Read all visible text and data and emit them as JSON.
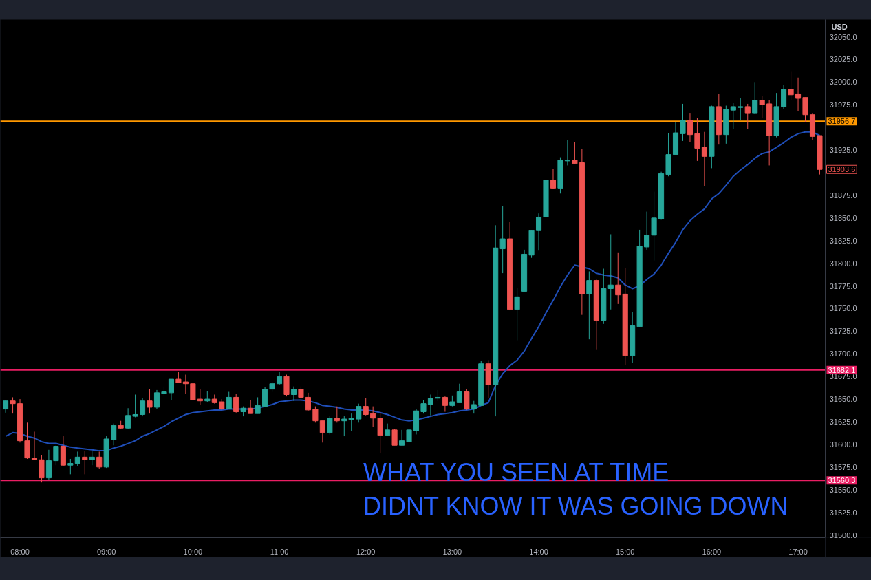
{
  "chart_data": {
    "type": "candlestick",
    "ylabel": "USD",
    "x": [
      7.8333,
      7.9167,
      8,
      8.0833,
      8.1667,
      8.25,
      8.3333,
      8.4167,
      8.5,
      8.5833,
      8.6667,
      8.75,
      8.8333,
      8.9167,
      9,
      9.0833,
      9.1667,
      9.25,
      9.3333,
      9.4167,
      9.5,
      9.5833,
      9.6667,
      9.75,
      9.8333,
      9.9167,
      10,
      10.0833,
      10.1667,
      10.25,
      10.3333,
      10.4167,
      10.5,
      10.5833,
      10.6667,
      10.75,
      10.8333,
      10.9167,
      11,
      11.0833,
      11.1667,
      11.25,
      11.3333,
      11.4167,
      11.5,
      11.5833,
      11.6667,
      11.75,
      11.8333,
      11.9167,
      12,
      12.0833,
      12.1667,
      12.25,
      12.3333,
      12.4167,
      12.5,
      12.5833,
      12.6667,
      12.75,
      12.8333,
      12.9167,
      13,
      13.0833,
      13.1667,
      13.25,
      13.3333,
      13.4167,
      13.5,
      13.5833,
      13.6667,
      13.75,
      13.8333,
      13.9167,
      14,
      14.0833,
      14.1667,
      14.25,
      14.3333,
      14.4167,
      14.5,
      14.5833,
      14.6667,
      14.75,
      14.8333,
      14.9167,
      15,
      15.0833,
      15.1667,
      15.25,
      15.3333,
      15.4167,
      15.5,
      15.5833,
      15.6667,
      15.75,
      15.8333,
      15.9167,
      16,
      16.0833,
      16.1667,
      16.25,
      16.3333,
      16.4167,
      16.5,
      16.5833,
      16.6667,
      16.75,
      16.8333,
      16.9167,
      17,
      17.0833,
      17.1667,
      17.25
    ],
    "ohlc": [
      [
        31639,
        31649,
        31635,
        31648
      ],
      [
        31648,
        31652,
        31634,
        31645
      ],
      [
        31645,
        31650,
        31602,
        31604
      ],
      [
        31604,
        31624,
        31584,
        31585
      ],
      [
        31585,
        31614,
        31583,
        31583
      ],
      [
        31583,
        31588,
        31558,
        31563
      ],
      [
        31563,
        31594,
        31561,
        31582
      ],
      [
        31582,
        31599,
        31577,
        31598
      ],
      [
        31598,
        31609,
        31576,
        31577
      ],
      [
        31577,
        31584,
        31567,
        31579
      ],
      [
        31579,
        31592,
        31576,
        31586
      ],
      [
        31586,
        31593,
        31567,
        31583
      ],
      [
        31583,
        31593,
        31577,
        31586
      ],
      [
        31586,
        31592,
        31573,
        31575
      ],
      [
        31575,
        31609,
        31574,
        31606
      ],
      [
        31605,
        31623,
        31599,
        31621
      ],
      [
        31621,
        31626,
        31617,
        31618
      ],
      [
        31618,
        31640,
        31617,
        31632
      ],
      [
        31631,
        31655,
        31630,
        31633
      ],
      [
        31633,
        31651,
        31631,
        31648
      ],
      [
        31648,
        31661,
        31634,
        31641
      ],
      [
        31641,
        31660,
        31639,
        31657
      ],
      [
        31656,
        31664,
        31653,
        31658
      ],
      [
        31657,
        31672,
        31649,
        31672
      ],
      [
        31672,
        31680,
        31668,
        31668
      ],
      [
        31669,
        31677,
        31656,
        31667
      ],
      [
        31667,
        31667,
        31649,
        31649
      ],
      [
        31650,
        31661,
        31644,
        31648
      ],
      [
        31648,
        31659,
        31647,
        31650
      ],
      [
        31650,
        31655,
        31645,
        31646
      ],
      [
        31647,
        31650,
        31638,
        31639
      ],
      [
        31639,
        31658,
        31639,
        31652
      ],
      [
        31652,
        31656,
        31635,
        31636
      ],
      [
        31636,
        31642,
        31631,
        31640
      ],
      [
        31640,
        31649,
        31634,
        31634
      ],
      [
        31634,
        31652,
        31634,
        31643
      ],
      [
        31642,
        31663,
        31642,
        31661
      ],
      [
        31661,
        31669,
        31658,
        31667
      ],
      [
        31667,
        31680,
        31666,
        31675
      ],
      [
        31675,
        31677,
        31653,
        31655
      ],
      [
        31655,
        31664,
        31648,
        31661
      ],
      [
        31661,
        31664,
        31651,
        31652
      ],
      [
        31652,
        31657,
        31637,
        31638
      ],
      [
        31639,
        31642,
        31624,
        31626
      ],
      [
        31626,
        31626,
        31602,
        31613
      ],
      [
        31613,
        31631,
        31611,
        31629
      ],
      [
        31629,
        31642,
        31624,
        31626
      ],
      [
        31626,
        31631,
        31609,
        31628
      ],
      [
        31627,
        31634,
        31615,
        31629
      ],
      [
        31628,
        31645,
        31624,
        31642
      ],
      [
        31642,
        31651,
        31632,
        31633
      ],
      [
        31634,
        31642,
        31619,
        31629
      ],
      [
        31629,
        31636,
        31590,
        31610
      ],
      [
        31610,
        31623,
        31610,
        31616
      ],
      [
        31616,
        31617,
        31599,
        31599
      ],
      [
        31599,
        31616,
        31599,
        31604
      ],
      [
        31603,
        31617,
        31602,
        31616
      ],
      [
        31615,
        31639,
        31611,
        31637
      ],
      [
        31636,
        31649,
        31634,
        31645
      ],
      [
        31644,
        31655,
        31632,
        31651
      ],
      [
        31651,
        31660,
        31648,
        31652
      ],
      [
        31652,
        31653,
        31636,
        31643
      ],
      [
        31643,
        31654,
        31642,
        31647
      ],
      [
        31646,
        31667,
        31646,
        31658
      ],
      [
        31658,
        31661,
        31638,
        31639
      ],
      [
        31639,
        31648,
        31634,
        31644
      ],
      [
        31643,
        31692,
        31643,
        31689
      ],
      [
        31689,
        31693,
        31651,
        31666
      ],
      [
        31666,
        31842,
        31631,
        31817
      ],
      [
        31816,
        31863,
        31789,
        31827
      ],
      [
        31827,
        31846,
        31748,
        31749
      ],
      [
        31749,
        31773,
        31715,
        31763
      ],
      [
        31769,
        31815,
        31769,
        31810
      ],
      [
        31809,
        31836,
        31806,
        31836
      ],
      [
        31836,
        31855,
        31814,
        31851
      ],
      [
        31851,
        31898,
        31845,
        31892
      ],
      [
        31892,
        31904,
        31882,
        31883
      ],
      [
        31883,
        31917,
        31877,
        31914
      ],
      [
        31913,
        31936,
        31908,
        31914
      ],
      [
        31914,
        31934,
        31910,
        31910
      ],
      [
        31911,
        31926,
        31743,
        31766
      ],
      [
        31766,
        31791,
        31716,
        31781
      ],
      [
        31781,
        31782,
        31705,
        31737
      ],
      [
        31737,
        31794,
        31733,
        31772
      ],
      [
        31772,
        31832,
        31749,
        31776
      ],
      [
        31776,
        31812,
        31755,
        31765
      ],
      [
        31766,
        31795,
        31688,
        31698
      ],
      [
        31698,
        31746,
        31690,
        31731
      ],
      [
        31730,
        31837,
        31730,
        31819
      ],
      [
        31818,
        31857,
        31815,
        31831
      ],
      [
        31831,
        31879,
        31803,
        31850
      ],
      [
        31849,
        31901,
        31848,
        31899
      ],
      [
        31898,
        31944,
        31896,
        31920
      ],
      [
        31920,
        31956,
        31920,
        31944
      ],
      [
        31943,
        31976,
        31935,
        31958
      ],
      [
        31958,
        31966,
        31934,
        31942
      ],
      [
        31943,
        31960,
        31913,
        31927
      ],
      [
        31928,
        31945,
        31885,
        31918
      ],
      [
        31918,
        31974,
        31905,
        31973
      ],
      [
        31973,
        31987,
        31931,
        31942
      ],
      [
        31942,
        31974,
        31932,
        31970
      ],
      [
        31969,
        31977,
        31948,
        31973
      ],
      [
        31972,
        31982,
        31958,
        31973
      ],
      [
        31973,
        31976,
        31948,
        31966
      ],
      [
        31966,
        32000,
        31965,
        31980
      ],
      [
        31980,
        31985,
        31960,
        31975
      ],
      [
        31976,
        31980,
        31908,
        31941
      ],
      [
        31941,
        31988,
        31939,
        31973
      ],
      [
        31973,
        31997,
        31970,
        31992
      ],
      [
        31992,
        32012,
        31980,
        31986
      ],
      [
        31987,
        32005,
        31968,
        31982
      ],
      [
        31983,
        31983,
        31956,
        31964
      ],
      [
        31964,
        31966,
        31936,
        31940
      ],
      [
        31941,
        31941,
        31898,
        31903.6
      ]
    ],
    "colors": [
      "#26a69a",
      "#ef5350",
      "#ef5350",
      "#ef5350",
      "#ef5350",
      "#ef5350",
      "#26a69a",
      "#26a69a",
      "#ef5350",
      "#26a69a",
      "#26a69a",
      "#ef5350",
      "#26a69a",
      "#ef5350",
      "#26a69a",
      "#26a69a",
      "#ef5350",
      "#26a69a",
      "#26a69a",
      "#26a69a",
      "#ef5350",
      "#26a69a",
      "#26a69a",
      "#26a69a",
      "#ef5350",
      "#ef5350",
      "#ef5350",
      "#ef5350",
      "#26a69a",
      "#ef5350",
      "#ef5350",
      "#26a69a",
      "#ef5350",
      "#26a69a",
      "#ef5350",
      "#26a69a",
      "#26a69a",
      "#26a69a",
      "#26a69a",
      "#ef5350",
      "#26a69a",
      "#ef5350",
      "#ef5350",
      "#ef5350",
      "#ef5350",
      "#26a69a",
      "#ef5350",
      "#26a69a",
      "#26a69a",
      "#26a69a",
      "#ef5350",
      "#ef5350",
      "#ef5350",
      "#26a69a",
      "#ef5350",
      "#26a69a",
      "#26a69a",
      "#26a69a",
      "#26a69a",
      "#26a69a",
      "#26a69a",
      "#ef5350",
      "#26a69a",
      "#26a69a",
      "#ef5350",
      "#26a69a",
      "#26a69a",
      "#ef5350",
      "#26a69a",
      "#26a69a",
      "#ef5350",
      "#26a69a",
      "#26a69a",
      "#26a69a",
      "#26a69a",
      "#26a69a",
      "#ef5350",
      "#26a69a",
      "#26a69a",
      "#ef5350",
      "#ef5350",
      "#26a69a",
      "#ef5350",
      "#26a69a",
      "#26a69a",
      "#ef5350",
      "#ef5350",
      "#26a69a",
      "#26a69a",
      "#26a69a",
      "#26a69a",
      "#26a69a",
      "#26a69a",
      "#26a69a",
      "#26a69a",
      "#ef5350",
      "#ef5350",
      "#ef5350",
      "#26a69a",
      "#ef5350",
      "#26a69a",
      "#26a69a",
      "#26a69a",
      "#ef5350",
      "#26a69a",
      "#ef5350",
      "#ef5350",
      "#26a69a",
      "#26a69a",
      "#ef5350",
      "#ef5350",
      "#ef5350",
      "#ef5350",
      "#ef5350"
    ],
    "series": [
      {
        "type": "line",
        "color": "#1f4eb8",
        "x": [
          7.8333,
          7.9167,
          8,
          8.0833,
          8.1667,
          8.25,
          8.3333,
          8.4167,
          8.5,
          8.5833,
          8.6667,
          8.75,
          8.8333,
          8.9167,
          9,
          9.0833,
          9.1667,
          9.25,
          9.3333,
          9.4167,
          9.5,
          9.5833,
          9.6667,
          9.75,
          9.8333,
          9.9167,
          10,
          10.0833,
          10.1667,
          10.25,
          10.3333,
          10.4167,
          10.5833,
          10.6667,
          10.75,
          10.8333,
          10.9167,
          11,
          11.0833,
          11.1667,
          11.25,
          11.3333,
          11.4167,
          11.5,
          11.5833,
          11.6667,
          11.75,
          11.8333,
          11.9167,
          12,
          12.0833,
          12.1667,
          12.25,
          12.3333,
          12.4167,
          12.5,
          12.5833,
          12.6667,
          12.75,
          12.8333,
          12.9167,
          13,
          13.0833,
          13.1667,
          13.25,
          13.3333,
          13.4167,
          13.5,
          13.5833,
          13.6667,
          13.75,
          13.8333,
          13.9167,
          14,
          14.0833,
          14.1667,
          14.25,
          14.3333,
          14.4167,
          14.5833,
          14.6667,
          14.75,
          14.8333,
          14.9167,
          15,
          15.0833,
          15.1667,
          15.25,
          15.3333,
          15.4167,
          15.5,
          15.5833,
          15.6667,
          15.75,
          15.8333,
          15.9167,
          16,
          16.0833,
          16.1667,
          16.25,
          16.3333,
          16.4167,
          16.5,
          16.5833,
          16.6667,
          16.75,
          16.8333,
          16.9167,
          17,
          17.0833,
          17.1667,
          17.25
        ],
        "values": [
          31609,
          31613,
          31612,
          31609,
          31607,
          31603,
          31601,
          31601,
          31599,
          31597,
          31596,
          31595,
          31594,
          31593,
          31593,
          31596,
          31598,
          31601,
          31604,
          31609,
          31612,
          31616,
          31620,
          31625,
          31629,
          31633,
          31635,
          31636,
          31637,
          31638,
          31638,
          31639,
          31639,
          31639,
          31640,
          31642,
          31644,
          31647,
          31648,
          31649,
          31649,
          31648,
          31646,
          31643,
          31642,
          31641,
          31639,
          31638,
          31638,
          31638,
          31637,
          31635,
          31633,
          31630,
          31627,
          31626,
          31627,
          31629,
          31631,
          31633,
          31634,
          31635,
          31637,
          31638,
          31639,
          31643,
          31646,
          31665,
          31678,
          31687,
          31693,
          31703,
          31717,
          31730,
          31745,
          31759,
          31774,
          31787,
          31798,
          31794,
          31789,
          31787,
          31786,
          31784,
          31776,
          31772,
          31775,
          31782,
          31788,
          31798,
          31811,
          31823,
          31837,
          31847,
          31854,
          31860,
          31871,
          31877,
          31886,
          31896,
          31903,
          31909,
          31916,
          31921,
          31923,
          31928,
          31933,
          31939,
          31943,
          31945,
          31945,
          31941
        ]
      }
    ],
    "xlim": [
      7.773,
      17.314
    ],
    "xticks": [
      {
        "value": 8,
        "label": "08:00"
      },
      {
        "value": 9,
        "label": "09:00"
      },
      {
        "value": 10,
        "label": "10:00"
      },
      {
        "value": 11,
        "label": "11:00"
      },
      {
        "value": 12,
        "label": "12:00"
      },
      {
        "value": 13,
        "label": "13:00"
      },
      {
        "value": 14,
        "label": "14:00"
      },
      {
        "value": 15,
        "label": "15:00"
      },
      {
        "value": 16,
        "label": "16:00"
      },
      {
        "value": 17,
        "label": "17:00"
      }
    ],
    "ylim": [
      31497,
      32069
    ],
    "yticks": [
      {
        "value": 31500,
        "label": "31500.0"
      },
      {
        "value": 31525,
        "label": "31525.0"
      },
      {
        "value": 31550,
        "label": "31550.0"
      },
      {
        "value": 31575,
        "label": "31575.0"
      },
      {
        "value": 31600,
        "label": "31600.0"
      },
      {
        "value": 31625,
        "label": "31625.0"
      },
      {
        "value": 31650,
        "label": "31650.0"
      },
      {
        "value": 31675,
        "label": "31675.0"
      },
      {
        "value": 31700,
        "label": "31700.0"
      },
      {
        "value": 31725,
        "label": "31725.0"
      },
      {
        "value": 31750,
        "label": "31750.0"
      },
      {
        "value": 31775,
        "label": "31775.0"
      },
      {
        "value": 31800,
        "label": "31800.0"
      },
      {
        "value": 31825,
        "label": "31825.0"
      },
      {
        "value": 31850,
        "label": "31850.0"
      },
      {
        "value": 31875,
        "label": "31875.0"
      },
      {
        "value": 31925,
        "label": "31925.0"
      },
      {
        "value": 31975,
        "label": "31975.0"
      },
      {
        "value": 32000,
        "label": "32000.0"
      },
      {
        "value": 32025,
        "label": "32025.0"
      },
      {
        "value": 32050,
        "label": "32050.0"
      }
    ],
    "ref_lines": [
      {
        "axis": "y",
        "value": 31956.7,
        "label": "31956.7",
        "color": "#ff9800"
      },
      {
        "axis": "y",
        "value": 31682.1,
        "label": "31682.1",
        "color": "#e91e63"
      },
      {
        "axis": "y",
        "value": 31560.3,
        "label": "31560.3",
        "color": "#e91e63"
      }
    ],
    "annotations": [
      "31903.6",
      "WHAT YOU SEEN AT TIME",
      "DIDNT KNOW IT WAS GOING DOWN"
    ]
  }
}
